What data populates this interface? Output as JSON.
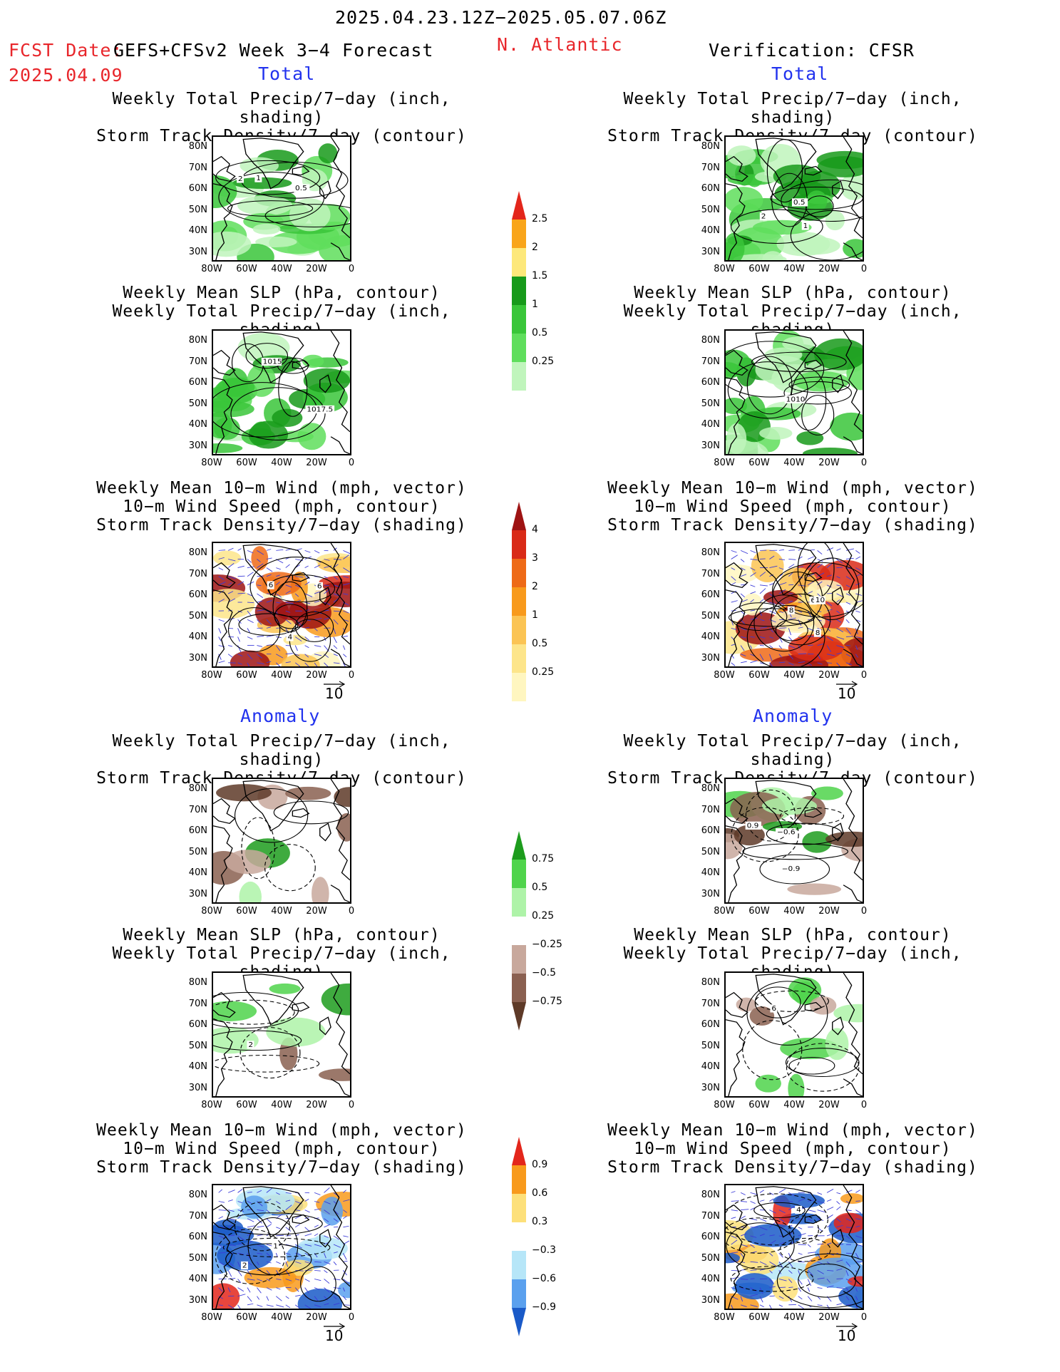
{
  "header": {
    "date_range": "2025.04.23.12Z−2025.05.07.06Z",
    "fcst_label": "FCST Date:",
    "fcst_date": "2025.04.09",
    "model": "GEFS+CFSv2 Week 3−4 Forecast",
    "region": "N. Atlantic",
    "verification": "Verification: CFSR"
  },
  "sections": {
    "total_left": "Total",
    "total_right": "Total",
    "anomaly_left": "Anomaly",
    "anomaly_right": "Anomaly"
  },
  "panel_titles": {
    "p1": [
      "Weekly Total Precip/7−day (inch, shading)",
      "Storm Track Density/7−day (contour)"
    ],
    "p2": [
      "Weekly Mean SLP (hPa, contour)",
      "Weekly Total Precip/7−day (inch, shading)"
    ],
    "p3": [
      "Weekly Mean 10−m Wind (mph, vector)",
      "10−m Wind Speed (mph, contour)",
      "Storm Track Density/7−day (shading)"
    ]
  },
  "axes": {
    "lat_ticks": [
      "80N",
      "70N",
      "60N",
      "50N",
      "40N",
      "30N"
    ],
    "lon_ticks": [
      "80W",
      "60W",
      "40W",
      "20W",
      "0"
    ]
  },
  "vector_ref": "10",
  "colorbars": {
    "precip_total": [
      "2.5",
      "2",
      "1.5",
      "1",
      "0.5",
      "0.25"
    ],
    "storm_total": [
      "4",
      "3",
      "2",
      "1",
      "0.5",
      "0.25"
    ],
    "precip_anom": [
      "0.75",
      "0.5",
      "0.25",
      "−0.25",
      "−0.5",
      "−0.75"
    ],
    "storm_anom": [
      "0.9",
      "0.6",
      "0.3",
      "−0.3",
      "−0.6",
      "−0.9"
    ]
  },
  "contour_labels": {
    "f1": [
      "2",
      "1",
      "0.5"
    ],
    "v1": [
      "2",
      "1",
      "0.5"
    ],
    "f2": [
      "1015",
      "1017.5"
    ],
    "v2": [
      "1010"
    ],
    "f3": [
      "4",
      "6",
      "6"
    ],
    "v3": [
      "6",
      "8",
      "10",
      "8"
    ],
    "v4": [
      "0.9",
      "−0.6",
      "−0.9"
    ],
    "f5": [
      "2"
    ],
    "v5": [
      "6"
    ],
    "f6": [
      "1",
      "2"
    ],
    "v6": [
      "4"
    ]
  },
  "colors": {
    "header_red": "#e8262b",
    "section_blue": "#2233ee",
    "precip_scale": [
      "#c0f5bc",
      "#5fde5c",
      "#39c639",
      "#179a1a",
      "#fde87a",
      "#f9a51a",
      "#e3261b"
    ],
    "storm_scale": [
      "#fff6c0",
      "#fde58a",
      "#fbc454",
      "#f89a1c",
      "#ee6a17",
      "#d92a17",
      "#9e1313"
    ],
    "precip_anom_scale": [
      "#5e3a28",
      "#8a6050",
      "#c8a89c",
      "#ffffff",
      "#aef3a8",
      "#4fd44b",
      "#1d9c1d"
    ],
    "storm_anom_scale": [
      "#1a5ac8",
      "#5aa0ee",
      "#b6e6f8",
      "#ffffff",
      "#fde07a",
      "#f89a1c",
      "#e3261b"
    ]
  }
}
